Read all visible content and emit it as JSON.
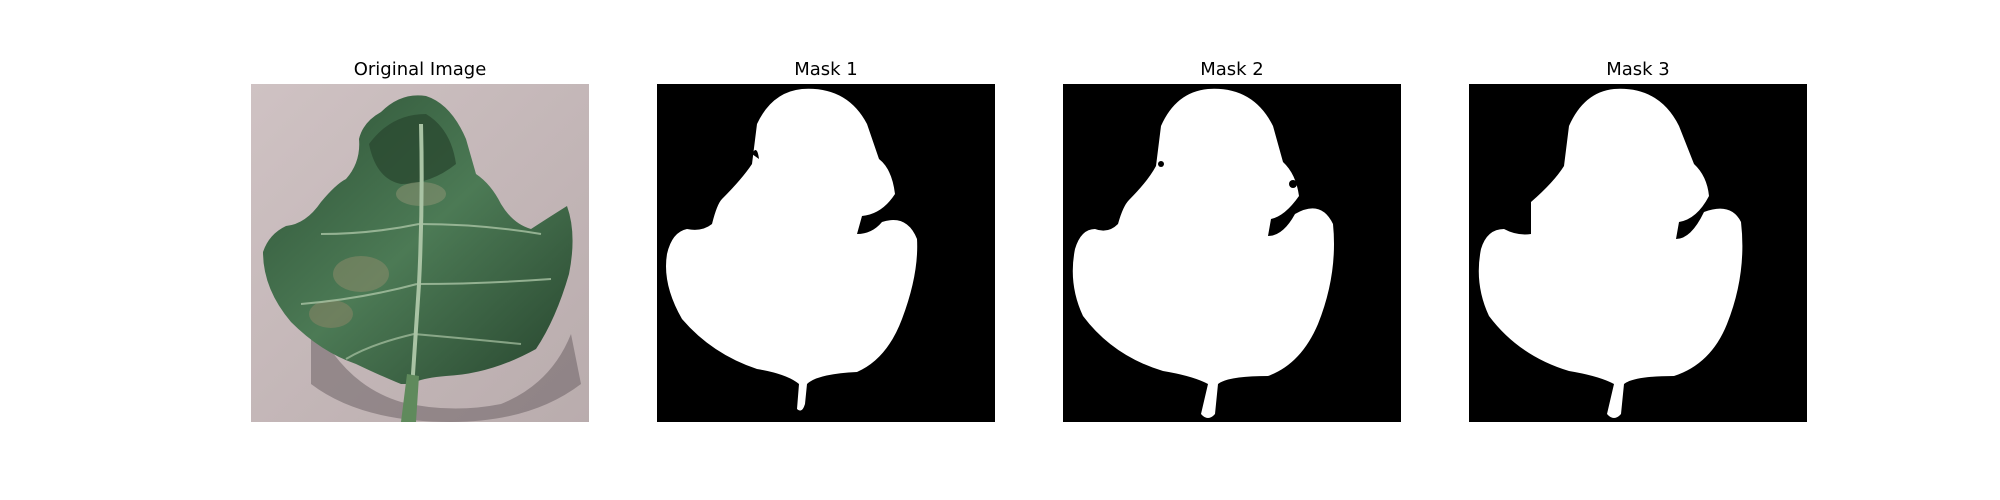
{
  "figure": {
    "panels": [
      {
        "title": "Original Image",
        "image_description": "Photo of a green tomato leaf with brownish patches lying on a pale concrete surface"
      },
      {
        "title": "Mask 1",
        "image_description": "Binary segmentation mask: white leaf silhouette on black background"
      },
      {
        "title": "Mask 2",
        "image_description": "Binary segmentation mask: white leaf silhouette on black background"
      },
      {
        "title": "Mask 3",
        "image_description": "Binary segmentation mask: white leaf silhouette on black background"
      }
    ],
    "colors": {
      "background": "#ffffff",
      "mask_fg": "#ffffff",
      "mask_bg": "#000000",
      "ground": "#c9bcbd",
      "leaf_dark": "#1f3a26",
      "leaf_mid": "#3e6a48",
      "leaf_light": "#7ca07f"
    }
  }
}
